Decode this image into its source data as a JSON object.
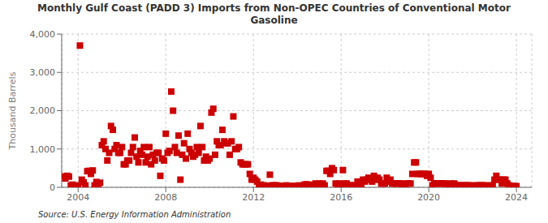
{
  "chart_data": {
    "type": "scatter",
    "title": "Monthly Gulf Coast (PADD 3) Imports from Non-OPEC Countries of Conventional Motor\nGasoline",
    "y_label": "Thousand Barrels",
    "annotations": [
      "Source: U.S. Energy Information Administration"
    ],
    "color": "#CC0000",
    "marker": "square",
    "grid": true,
    "xlim": [
      2003.25,
      2024.7
    ],
    "xticks": [
      2004,
      2008,
      2012,
      2016,
      2020,
      2024
    ],
    "ylim": [
      0,
      4000
    ],
    "yticks": [
      0,
      {
        "value": 1000,
        "label": "1,000"
      },
      {
        "value": 2000,
        "label": "2,000"
      },
      {
        "value": 3000,
        "label": "3,000"
      },
      {
        "value": 4000,
        "label": "4,000"
      }
    ],
    "x": [
      2003.333,
      2003.417,
      2003.5,
      2003.583,
      2003.667,
      2003.75,
      2003.833,
      2003.917,
      2004.0,
      2004.083,
      2004.167,
      2004.25,
      2004.333,
      2004.417,
      2004.5,
      2004.583,
      2004.667,
      2004.75,
      2004.833,
      2004.917,
      2005.0,
      2005.083,
      2005.167,
      2005.25,
      2005.333,
      2005.417,
      2005.5,
      2005.583,
      2005.667,
      2005.75,
      2005.833,
      2005.917,
      2006.0,
      2006.083,
      2006.167,
      2006.25,
      2006.333,
      2006.417,
      2006.5,
      2006.583,
      2006.667,
      2006.75,
      2006.833,
      2006.917,
      2007.0,
      2007.083,
      2007.167,
      2007.25,
      2007.333,
      2007.417,
      2007.5,
      2007.583,
      2007.667,
      2007.75,
      2007.833,
      2007.917,
      2008.0,
      2008.083,
      2008.167,
      2008.25,
      2008.333,
      2008.417,
      2008.5,
      2008.583,
      2008.667,
      2008.75,
      2008.833,
      2008.917,
      2009.0,
      2009.083,
      2009.167,
      2009.25,
      2009.333,
      2009.417,
      2009.5,
      2009.583,
      2009.667,
      2009.75,
      2009.833,
      2009.917,
      2010.0,
      2010.083,
      2010.167,
      2010.25,
      2010.333,
      2010.417,
      2010.5,
      2010.583,
      2010.667,
      2010.75,
      2010.833,
      2010.917,
      2011.0,
      2011.083,
      2011.167,
      2011.25,
      2011.333,
      2011.417,
      2011.5,
      2011.583,
      2011.667,
      2011.75,
      2011.833,
      2011.917,
      2012.0,
      2012.083,
      2012.167,
      2012.25,
      2012.333,
      2012.417,
      2012.5,
      2012.583,
      2012.667,
      2012.75,
      2012.833,
      2012.917,
      2013.0,
      2013.083,
      2013.167,
      2013.25,
      2013.333,
      2013.417,
      2013.5,
      2013.583,
      2013.667,
      2013.75,
      2013.833,
      2013.917,
      2014.0,
      2014.083,
      2014.167,
      2014.25,
      2014.333,
      2014.417,
      2014.5,
      2014.583,
      2014.667,
      2014.75,
      2014.833,
      2014.917,
      2015.0,
      2015.083,
      2015.167,
      2015.25,
      2015.333,
      2015.417,
      2015.5,
      2015.583,
      2015.667,
      2015.75,
      2015.833,
      2015.917,
      2016.0,
      2016.083,
      2016.167,
      2016.25,
      2016.333,
      2016.417,
      2016.5,
      2016.583,
      2016.667,
      2016.75,
      2016.833,
      2016.917,
      2017.0,
      2017.083,
      2017.167,
      2017.25,
      2017.333,
      2017.417,
      2017.5,
      2017.583,
      2017.667,
      2017.75,
      2017.833,
      2017.917,
      2018.0,
      2018.083,
      2018.167,
      2018.25,
      2018.333,
      2018.417,
      2018.5,
      2018.583,
      2018.667,
      2018.75,
      2018.833,
      2018.917,
      2019.0,
      2019.083,
      2019.167,
      2019.25,
      2019.333,
      2019.417,
      2019.5,
      2019.583,
      2019.667,
      2019.75,
      2019.833,
      2019.917,
      2020.0,
      2020.083,
      2020.167,
      2020.25,
      2020.333,
      2020.417,
      2020.5,
      2020.583,
      2020.667,
      2020.75,
      2020.833,
      2020.917,
      2021.0,
      2021.083,
      2021.167,
      2021.25,
      2021.333,
      2021.417,
      2021.5,
      2021.583,
      2021.667,
      2021.75,
      2021.833,
      2021.917,
      2022.0,
      2022.083,
      2022.167,
      2022.25,
      2022.333,
      2022.417,
      2022.5,
      2022.583,
      2022.667,
      2022.75,
      2022.833,
      2022.917,
      2023.0,
      2023.083,
      2023.167,
      2023.25,
      2023.333,
      2023.417,
      2023.5,
      2023.583,
      2023.667,
      2023.75,
      2023.833,
      2023.917,
      2024.0
    ],
    "values": [
      285,
      230,
      300,
      280,
      50,
      70,
      10,
      50,
      30,
      3700,
      200,
      130,
      50,
      420,
      430,
      350,
      440,
      50,
      140,
      0,
      120,
      1100,
      1200,
      1000,
      700,
      900,
      1600,
      1500,
      1000,
      1100,
      900,
      900,
      1050,
      600,
      600,
      700,
      700,
      900,
      1050,
      1300,
      800,
      650,
      950,
      850,
      1050,
      650,
      800,
      1050,
      600,
      850,
      700,
      900,
      900,
      300,
      750,
      700,
      1400,
      900,
      950,
      2500,
      2000,
      1050,
      900,
      1350,
      200,
      850,
      1150,
      750,
      1400,
      1000,
      900,
      800,
      850,
      1050,
      900,
      1600,
      1050,
      700,
      800,
      700,
      750,
      1950,
      2050,
      850,
      1200,
      1100,
      1100,
      1500,
      1200,
      1150,
      1150,
      850,
      1200,
      1850,
      1000,
      1000,
      1050,
      650,
      600,
      600,
      600,
      600,
      350,
      200,
      250,
      200,
      150,
      50,
      70,
      50,
      50,
      30,
      30,
      330,
      50,
      50,
      50,
      50,
      30,
      30,
      30,
      30,
      50,
      30,
      30,
      30,
      30,
      30,
      30,
      50,
      30,
      30,
      70,
      80,
      50,
      50,
      70,
      50,
      100,
      50,
      100,
      50,
      100,
      50,
      430,
      430,
      350,
      500,
      450,
      100,
      80,
      100,
      50,
      450,
      100,
      100,
      50,
      50,
      50,
      50,
      50,
      150,
      50,
      50,
      200,
      150,
      200,
      250,
      200,
      150,
      300,
      200,
      250,
      200,
      100,
      100,
      100,
      250,
      150,
      200,
      100,
      100,
      100,
      100,
      100,
      100,
      50,
      50,
      100,
      100,
      100,
      350,
      650,
      650,
      350,
      350,
      350,
      350,
      350,
      300,
      350,
      250,
      50,
      100,
      100,
      100,
      100,
      100,
      100,
      100,
      50,
      50,
      100,
      50,
      100,
      50,
      50,
      50,
      50,
      50,
      50,
      50,
      50,
      50,
      30,
      30,
      50,
      50,
      50,
      50,
      50,
      50,
      30,
      30,
      50,
      50,
      200,
      300,
      200,
      200,
      100,
      200,
      200,
      100,
      50,
      30,
      30,
      30,
      30
    ]
  }
}
